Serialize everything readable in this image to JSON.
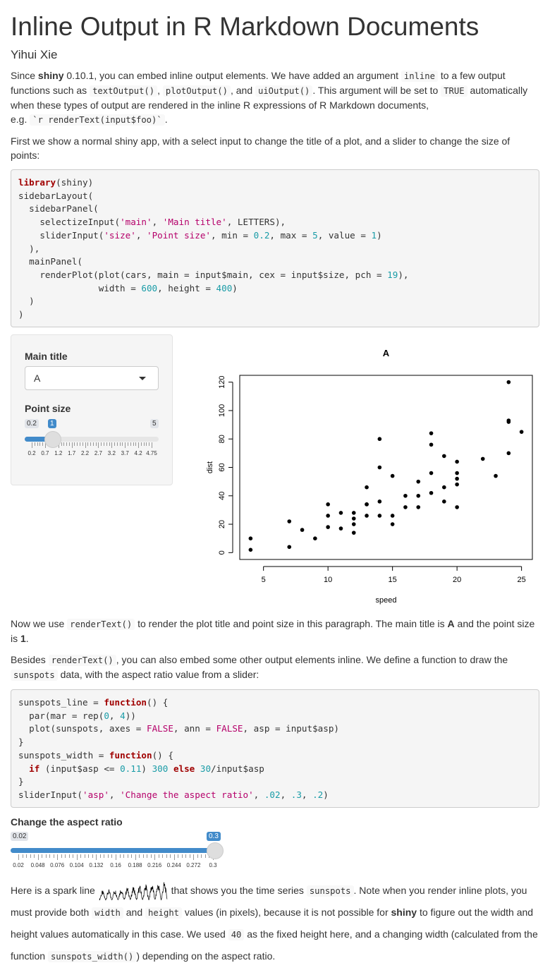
{
  "title": "Inline Output in R Markdown Documents",
  "author": "Yihui Xie",
  "para1": {
    "t1": "Since ",
    "shiny": "shiny",
    "t2": " 0.10.1, you can embed inline output elements. We have added an argument ",
    "inline": "inline",
    "t3": " to a few output functions such as ",
    "c1": "textOutput()",
    "t4": ", ",
    "c2": "plotOutput()",
    "t5": ", and ",
    "c3": "uiOutput()",
    "t6": ". This argument will be set to ",
    "c4": "TRUE",
    "t7": " automatically when these types of output are rendered in the inline R expressions of R Markdown documents,",
    "t8": "e.g. ",
    "c5": "`r renderText(input$foo)`",
    "t9": "."
  },
  "para2": "First we show a normal shiny app, with a select input to change the title of a plot, and a slider to change the size of points:",
  "code1": [
    [
      [
        "kw",
        "library"
      ],
      [
        "",
        "(shiny)"
      ]
    ],
    [
      [
        "",
        "sidebarLayout("
      ]
    ],
    [
      [
        "",
        "  sidebarPanel("
      ]
    ],
    [
      [
        "",
        "    selectizeInput("
      ],
      [
        "str",
        "'main'"
      ],
      [
        "",
        ", "
      ],
      [
        "str",
        "'Main title'"
      ],
      [
        "",
        ", LETTERS),"
      ]
    ],
    [
      [
        "",
        "    sliderInput("
      ],
      [
        "str",
        "'size'"
      ],
      [
        "",
        ", "
      ],
      [
        "str",
        "'Point size'"
      ],
      [
        "",
        ", min = "
      ],
      [
        "num",
        "0.2"
      ],
      [
        "",
        ", max = "
      ],
      [
        "num",
        "5"
      ],
      [
        "",
        ", value = "
      ],
      [
        "num",
        "1"
      ],
      [
        "",
        ")"
      ]
    ],
    [
      [
        "",
        "  ),"
      ]
    ],
    [
      [
        "",
        "  mainPanel("
      ]
    ],
    [
      [
        "",
        "    renderPlot(plot(cars, main = input$main, cex = input$size, pch = "
      ],
      [
        "num",
        "19"
      ],
      [
        "",
        "),"
      ]
    ],
    [
      [
        "",
        "               width = "
      ],
      [
        "num",
        "600"
      ],
      [
        "",
        ", height = "
      ],
      [
        "num",
        "400"
      ],
      [
        "",
        ")"
      ]
    ],
    [
      [
        "",
        "  )"
      ]
    ],
    [
      [
        "",
        ")"
      ]
    ]
  ],
  "app": {
    "select_label": "Main title",
    "select_value": "A",
    "slider_label": "Point size",
    "slider_min": "0.2",
    "slider_max": "5",
    "slider_value": "1",
    "slider_ticks": [
      "0.2",
      "0.7",
      "1.2",
      "1.7",
      "2.2",
      "2.7",
      "3.2",
      "3.7",
      "4.2",
      "4.75"
    ]
  },
  "chart_data": {
    "type": "scatter",
    "title": "A",
    "xlabel": "speed",
    "ylabel": "dist",
    "xlim": [
      4,
      25
    ],
    "ylim": [
      0,
      120
    ],
    "xticks": [
      5,
      10,
      15,
      20,
      25
    ],
    "yticks": [
      0,
      20,
      40,
      60,
      80,
      100,
      120
    ],
    "x": [
      4,
      4,
      7,
      7,
      8,
      9,
      10,
      10,
      10,
      11,
      11,
      12,
      12,
      12,
      12,
      13,
      13,
      13,
      13,
      14,
      14,
      14,
      14,
      15,
      15,
      15,
      16,
      16,
      17,
      17,
      17,
      18,
      18,
      18,
      18,
      19,
      19,
      19,
      20,
      20,
      20,
      20,
      20,
      22,
      23,
      24,
      24,
      24,
      24,
      25
    ],
    "y": [
      2,
      10,
      4,
      22,
      16,
      10,
      18,
      26,
      34,
      17,
      28,
      14,
      20,
      24,
      28,
      26,
      34,
      34,
      46,
      26,
      36,
      60,
      80,
      20,
      26,
      54,
      32,
      40,
      32,
      40,
      50,
      42,
      56,
      76,
      84,
      36,
      46,
      68,
      32,
      48,
      52,
      56,
      64,
      66,
      54,
      70,
      92,
      93,
      120,
      85
    ]
  },
  "para3": {
    "t1": "Now we use ",
    "c1": "renderText()",
    "t2": " to render the plot title and point size in this paragraph. The main title is ",
    "b1": "A",
    "t3": " and the point size is ",
    "b2": "1",
    "t4": "."
  },
  "para4": {
    "t1": "Besides ",
    "c1": "renderText()",
    "t2": ", you can also embed some other output elements inline. We define a function to draw the ",
    "c2": "sunspots",
    "t3": " data, with the aspect ratio value from a slider:"
  },
  "code2": [
    [
      [
        "",
        "sunspots_line = "
      ],
      [
        "kw",
        "function"
      ],
      [
        "",
        "() {"
      ]
    ],
    [
      [
        "",
        "  par(mar = rep("
      ],
      [
        "num",
        "0"
      ],
      [
        "",
        ", "
      ],
      [
        "num",
        "4"
      ],
      [
        "",
        "))"
      ]
    ],
    [
      [
        "",
        "  plot(sunspots, axes = "
      ],
      [
        "cst",
        "FALSE"
      ],
      [
        "",
        ", ann = "
      ],
      [
        "cst",
        "FALSE"
      ],
      [
        "",
        ", asp = input$asp)"
      ]
    ],
    [
      [
        "",
        "}"
      ]
    ],
    [
      [
        "",
        "sunspots_width = "
      ],
      [
        "kw",
        "function"
      ],
      [
        "",
        "() {"
      ]
    ],
    [
      [
        "",
        "  "
      ],
      [
        "kw",
        "if"
      ],
      [
        "",
        " (input$asp <= "
      ],
      [
        "num",
        "0.11"
      ],
      [
        "",
        ") "
      ],
      [
        "num",
        "300"
      ],
      [
        "",
        " "
      ],
      [
        "kw",
        "else"
      ],
      [
        "",
        " "
      ],
      [
        "num",
        "30"
      ],
      [
        "",
        "/input$asp"
      ]
    ],
    [
      [
        "",
        "}"
      ]
    ],
    [
      [
        "",
        "sliderInput("
      ],
      [
        "str",
        "'asp'"
      ],
      [
        "",
        ", "
      ],
      [
        "str",
        "'Change the aspect ratio'"
      ],
      [
        "",
        ", "
      ],
      [
        "num",
        ".02"
      ],
      [
        "",
        ", "
      ],
      [
        "num",
        ".3"
      ],
      [
        "",
        ", "
      ],
      [
        "num",
        ".2"
      ],
      [
        "",
        ")"
      ]
    ]
  ],
  "asp_slider": {
    "label": "Change the aspect ratio",
    "min": "0.02",
    "max": "0.3",
    "value": "0.3",
    "ticks": [
      "0.02",
      "0.048",
      "0.076",
      "0.104",
      "0.132",
      "0.16",
      "0.188",
      "0.216",
      "0.244",
      "0.272",
      "0.3"
    ]
  },
  "para5": {
    "t1": "Here is a spark line ",
    "t2": " that shows you the time series ",
    "c1": "sunspots",
    "t3": ". Note when you render inline plots, you must provide both ",
    "c2": "width",
    "t4": " and ",
    "c3": "height",
    "t5": " values (in pixels), because it is not possible for ",
    "b1": "shiny",
    "t6": " to figure out the width and height values automatically in this case. We used ",
    "c4": "40",
    "t7": " as the fixed height here, and a changing width (calculated from the function ",
    "c5": "sunspots_width()",
    "t8": ") depending on the aspect ratio."
  }
}
